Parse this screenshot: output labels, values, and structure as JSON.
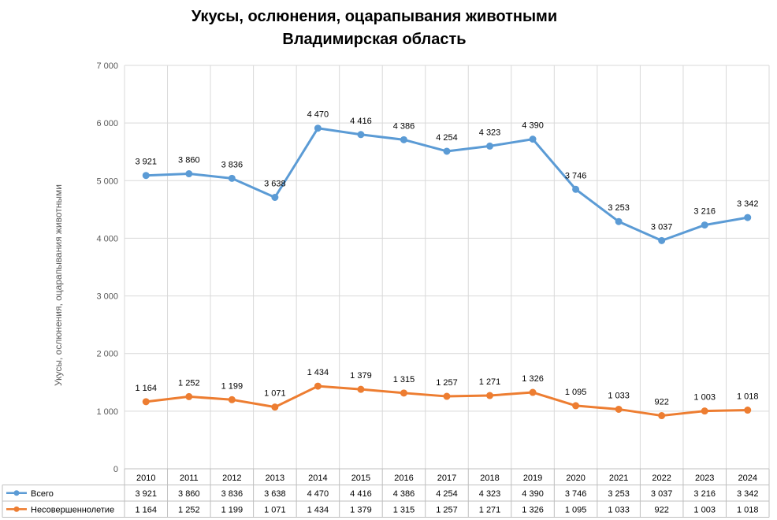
{
  "chart_data": {
    "type": "line",
    "title": [
      "Укусы, ослюнения, оцарапывания животными",
      "Владимирская область"
    ],
    "ylabel": "Укусы, ослюнения, оцарапывания животными",
    "xlabel": "",
    "ylim": [
      0,
      7000
    ],
    "yticks": [
      0,
      1000,
      2000,
      3000,
      4000,
      5000,
      6000,
      7000
    ],
    "ytick_labels": [
      "0",
      "1 000",
      "2 000",
      "3 000",
      "4 000",
      "5 000",
      "6 000",
      "7 000"
    ],
    "grid": true,
    "legend_position": "data-table",
    "categories": [
      "2010",
      "2011",
      "2012",
      "2013",
      "2014",
      "2015",
      "2016",
      "2017",
      "2018",
      "2019",
      "2020",
      "2021",
      "2022",
      "2023",
      "2024"
    ],
    "series": [
      {
        "name": "Всего",
        "color": "#5B9BD5",
        "values": [
          5090,
          5120,
          5040,
          4710,
          5910,
          5800,
          5710,
          5510,
          5600,
          5720,
          4850,
          4290,
          3960,
          4230,
          4360
        ],
        "labels": [
          "3 921",
          "3 860",
          "3 836",
          "3 638",
          "4 470",
          "4 416",
          "4 386",
          "4 254",
          "4 323",
          "4 390",
          "3 746",
          "3 253",
          "3 037",
          "3 216",
          "3 342"
        ]
      },
      {
        "name": "Несовершеннолетие",
        "color": "#ED7D31",
        "values": [
          1164,
          1252,
          1199,
          1071,
          1434,
          1379,
          1315,
          1257,
          1271,
          1326,
          1095,
          1033,
          922,
          1003,
          1018
        ],
        "labels": [
          "1 164",
          "1 252",
          "1 199",
          "1 071",
          "1 434",
          "1 379",
          "1 315",
          "1 257",
          "1 271",
          "1 326",
          "1 095",
          "1 033",
          "922",
          "1 003",
          "1 018"
        ]
      }
    ]
  }
}
